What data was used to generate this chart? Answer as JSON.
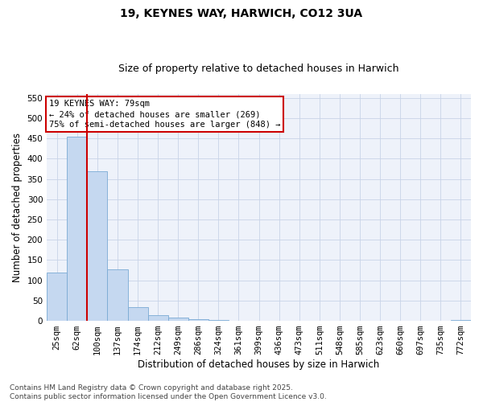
{
  "title": "19, KEYNES WAY, HARWICH, CO12 3UA",
  "subtitle": "Size of property relative to detached houses in Harwich",
  "xlabel": "Distribution of detached houses by size in Harwich",
  "ylabel": "Number of detached properties",
  "categories": [
    "25sqm",
    "62sqm",
    "100sqm",
    "137sqm",
    "174sqm",
    "212sqm",
    "249sqm",
    "286sqm",
    "324sqm",
    "361sqm",
    "399sqm",
    "436sqm",
    "473sqm",
    "511sqm",
    "548sqm",
    "585sqm",
    "623sqm",
    "660sqm",
    "697sqm",
    "735sqm",
    "772sqm"
  ],
  "values": [
    120,
    455,
    370,
    128,
    33,
    15,
    8,
    5,
    3,
    0,
    0,
    0,
    0,
    0,
    0,
    0,
    0,
    0,
    0,
    0,
    3
  ],
  "bar_color": "#c5d8f0",
  "bar_edge_color": "#7aaad4",
  "vline_color": "#cc0000",
  "vline_x": 1.5,
  "annotation_text": "19 KEYNES WAY: 79sqm\n← 24% of detached houses are smaller (269)\n75% of semi-detached houses are larger (848) →",
  "annotation_box_color": "white",
  "annotation_box_edge_color": "#cc0000",
  "ylim": [
    0,
    560
  ],
  "yticks": [
    0,
    50,
    100,
    150,
    200,
    250,
    300,
    350,
    400,
    450,
    500,
    550
  ],
  "grid_color": "#c8d4e8",
  "background_color": "#eef2fa",
  "footnote": "Contains HM Land Registry data © Crown copyright and database right 2025.\nContains public sector information licensed under the Open Government Licence v3.0.",
  "title_fontsize": 10,
  "subtitle_fontsize": 9,
  "xlabel_fontsize": 8.5,
  "ylabel_fontsize": 8.5,
  "tick_fontsize": 7.5,
  "annotation_fontsize": 7.5,
  "footnote_fontsize": 6.5
}
